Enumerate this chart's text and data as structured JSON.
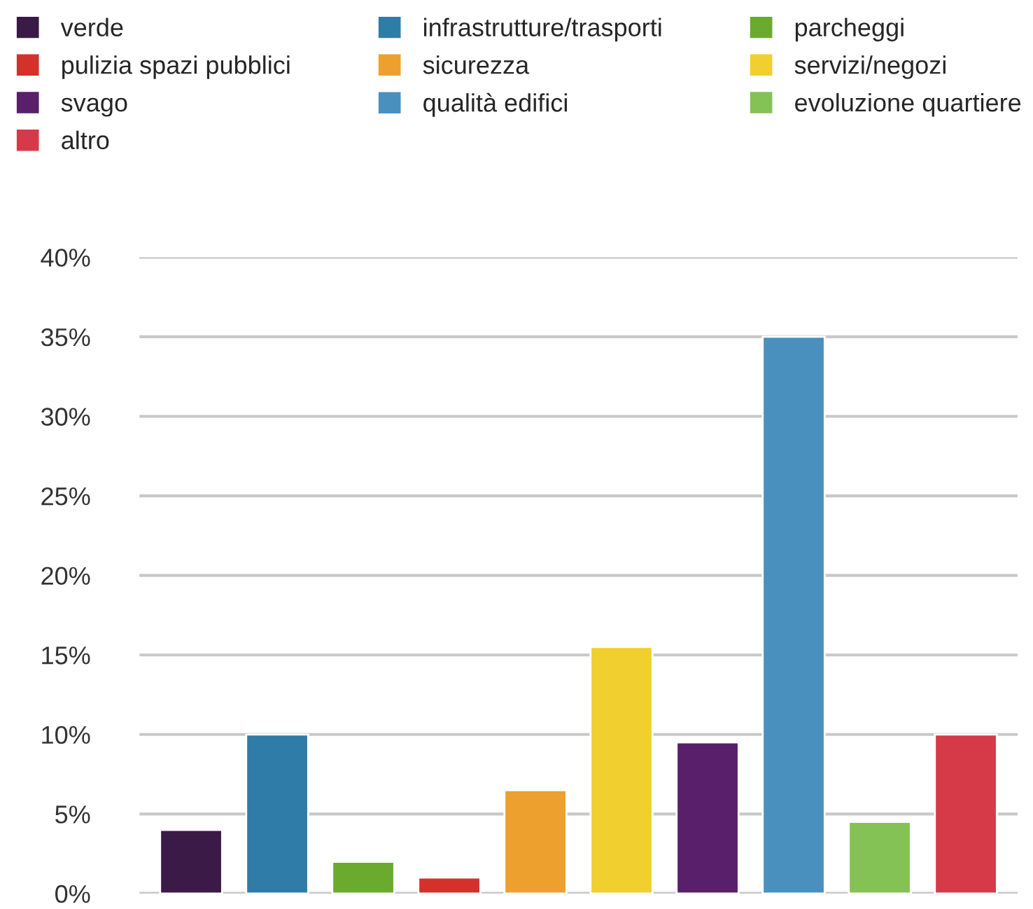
{
  "chart_data": {
    "type": "bar",
    "categories": [
      null,
      null,
      null,
      null,
      null,
      null,
      null,
      null,
      null,
      null
    ],
    "series": [
      {
        "name": "verde",
        "color": "#3b1a47",
        "values": [
          4,
          null,
          null,
          null,
          null,
          null,
          null,
          null,
          null,
          null
        ]
      },
      {
        "name": "infrastrutture/trasporti",
        "color": "#2f7ca8",
        "values": [
          null,
          10,
          null,
          null,
          null,
          null,
          null,
          null,
          null,
          null
        ]
      },
      {
        "name": "parcheggi",
        "color": "#6aaa2f",
        "values": [
          null,
          null,
          2,
          null,
          null,
          null,
          null,
          null,
          null,
          null
        ]
      },
      {
        "name": "pulizia spazi pubblici",
        "color": "#d3312a",
        "values": [
          null,
          null,
          null,
          1,
          null,
          null,
          null,
          null,
          null,
          null
        ]
      },
      {
        "name": "sicurezza",
        "color": "#eda02d",
        "values": [
          null,
          null,
          null,
          null,
          6.5,
          null,
          null,
          null,
          null,
          null
        ]
      },
      {
        "name": "servizi/negozi",
        "color": "#f0cf2e",
        "values": [
          null,
          null,
          null,
          null,
          null,
          15.5,
          null,
          null,
          null,
          null
        ]
      },
      {
        "name": "svago",
        "color": "#5a1f6a",
        "values": [
          null,
          null,
          null,
          null,
          null,
          null,
          9.5,
          null,
          null,
          null
        ]
      },
      {
        "name": "qualità edifici",
        "color": "#4a90bf",
        "values": [
          null,
          null,
          null,
          null,
          null,
          null,
          null,
          35,
          null,
          null
        ]
      },
      {
        "name": "evoluzione quartiere",
        "color": "#84c256",
        "values": [
          null,
          null,
          null,
          null,
          null,
          null,
          null,
          null,
          4.5,
          null
        ]
      },
      {
        "name": "altro",
        "color": "#d63a49",
        "values": [
          null,
          null,
          null,
          null,
          null,
          null,
          null,
          null,
          null,
          10
        ]
      }
    ],
    "ylim": [
      0,
      40
    ],
    "yticks": [
      {
        "value": 0,
        "label": "0%"
      },
      {
        "value": 5,
        "label": "5%"
      },
      {
        "value": 10,
        "label": "10%"
      },
      {
        "value": 15,
        "label": "15%"
      },
      {
        "value": 20,
        "label": "20%"
      },
      {
        "value": 25,
        "label": "25%"
      },
      {
        "value": 30,
        "label": "30%"
      },
      {
        "value": 35,
        "label": "35%"
      },
      {
        "value": 40,
        "label": "40%"
      }
    ],
    "grid": "y",
    "legend": "top",
    "tick_labels": "y"
  }
}
